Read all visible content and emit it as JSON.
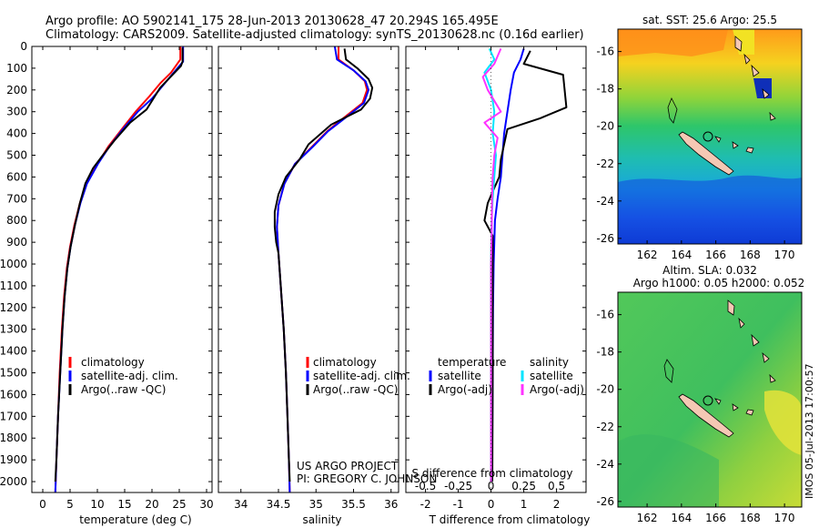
{
  "header": {
    "line1": "Argo profile: AO 5902141_175 28-Jun-2013 20130628_47 20.294S 165.495E",
    "line2": "Climatology: CARS2009. Satellite-adjusted climatology: synTS_20130628.nc (0.16d earlier)"
  },
  "colors": {
    "climatology": "#ff0000",
    "satellite": "#0000ff",
    "argo": "#000000",
    "cyan": "#00e5ff",
    "magenta": "#ff33ff"
  },
  "chart_data": [
    {
      "type": "line",
      "id": "temperature",
      "xlabel": "temperature (deg C)",
      "ylabel": "pressure",
      "xlim": [
        -2,
        31
      ],
      "ylim": [
        0,
        2050
      ],
      "xticks": [
        0,
        5,
        10,
        15,
        20,
        25,
        30
      ],
      "xtick_labels": [
        "0",
        "5",
        "10",
        "15",
        "20",
        "25",
        "30"
      ],
      "yticks": [
        0,
        100,
        200,
        300,
        400,
        500,
        600,
        700,
        800,
        900,
        1000,
        1100,
        1200,
        1300,
        1400,
        1500,
        1600,
        1700,
        1800,
        1900,
        2000
      ],
      "ytick_labels": [
        "0",
        "100",
        "200",
        "300",
        "400",
        "500",
        "600",
        "700",
        "800",
        "900",
        "1000",
        "1100",
        "1200",
        "1300",
        "1400",
        "1500",
        "1600",
        "1700",
        "1800",
        "1900",
        "2000"
      ],
      "legend": [
        "climatology",
        "satellite-adj. clim.",
        "Argo(..raw -QC)"
      ],
      "series": [
        {
          "name": "climatology",
          "color": "#ff0000",
          "points": [
            [
              25.2,
              0
            ],
            [
              25.2,
              60
            ],
            [
              23.5,
              120
            ],
            [
              21.5,
              170
            ],
            [
              19.5,
              230
            ],
            [
              17,
              300
            ],
            [
              14.5,
              380
            ],
            [
              12,
              460
            ],
            [
              10,
              540
            ],
            [
              8,
              630
            ],
            [
              6.8,
              720
            ],
            [
              5.8,
              820
            ],
            [
              5,
              920
            ],
            [
              4.4,
              1020
            ],
            [
              3.9,
              1150
            ],
            [
              3.5,
              1300
            ],
            [
              3.1,
              1500
            ],
            [
              2.8,
              1700
            ],
            [
              2.5,
              1900
            ],
            [
              2.3,
              2050
            ]
          ]
        },
        {
          "name": "satellite-adj. clim.",
          "color": "#0000ff",
          "points": [
            [
              25.7,
              0
            ],
            [
              25.7,
              70
            ],
            [
              24,
              120
            ],
            [
              22,
              180
            ],
            [
              20,
              240
            ],
            [
              17.4,
              300
            ],
            [
              14.7,
              380
            ],
            [
              12.2,
              460
            ],
            [
              10.1,
              540
            ],
            [
              8.1,
              630
            ],
            [
              6.9,
              720
            ],
            [
              5.9,
              820
            ],
            [
              5.1,
              920
            ],
            [
              4.5,
              1020
            ],
            [
              4,
              1150
            ],
            [
              3.6,
              1300
            ],
            [
              3.2,
              1500
            ],
            [
              2.8,
              1700
            ],
            [
              2.5,
              1900
            ],
            [
              2.3,
              2050
            ]
          ]
        },
        {
          "name": "Argo(..raw -QC)",
          "color": "#000000",
          "points": [
            [
              25.6,
              5
            ],
            [
              25.6,
              70
            ],
            [
              25.3,
              90
            ],
            [
              23,
              150
            ],
            [
              21.5,
              190
            ],
            [
              21,
              210
            ],
            [
              20.5,
              230
            ],
            [
              19,
              290
            ],
            [
              16,
              350
            ],
            [
              13.2,
              430
            ],
            [
              11,
              500
            ],
            [
              9.2,
              560
            ],
            [
              7.8,
              630
            ],
            [
              6.8,
              720
            ],
            [
              5.9,
              820
            ],
            [
              5.1,
              920
            ],
            [
              4.5,
              1020
            ],
            [
              4,
              1150
            ],
            [
              3.6,
              1300
            ],
            [
              3.2,
              1500
            ],
            [
              2.8,
              1700
            ],
            [
              2.5,
              1900
            ],
            [
              2.3,
              2000
            ]
          ]
        }
      ]
    },
    {
      "type": "line",
      "id": "salinity",
      "xlabel": "salinity",
      "xlim": [
        33.7,
        36.1
      ],
      "ylim": [
        0,
        2050
      ],
      "xticks": [
        34,
        34.5,
        35,
        35.5,
        36
      ],
      "xtick_labels": [
        "34",
        "34.5",
        "35",
        "35.5",
        "36"
      ],
      "legend": [
        "climatology",
        "satellite-adj. clim.",
        "Argo(..raw -QC)"
      ],
      "series": [
        {
          "name": "climatology",
          "color": "#ff0000",
          "points": [
            [
              35.3,
              0
            ],
            [
              35.3,
              60
            ],
            [
              35.5,
              110
            ],
            [
              35.65,
              160
            ],
            [
              35.68,
              200
            ],
            [
              35.62,
              260
            ],
            [
              35.4,
              320
            ],
            [
              35.15,
              390
            ],
            [
              34.95,
              460
            ],
            [
              34.72,
              540
            ],
            [
              34.58,
              630
            ],
            [
              34.5,
              730
            ],
            [
              34.48,
              830
            ],
            [
              34.5,
              950
            ],
            [
              34.53,
              1100
            ],
            [
              34.57,
              1300
            ],
            [
              34.6,
              1500
            ],
            [
              34.62,
              1700
            ],
            [
              34.64,
              1900
            ],
            [
              34.65,
              2050
            ]
          ]
        },
        {
          "name": "satellite-adj. clim.",
          "color": "#0000ff",
          "points": [
            [
              35.25,
              0
            ],
            [
              35.28,
              60
            ],
            [
              35.5,
              110
            ],
            [
              35.66,
              160
            ],
            [
              35.7,
              200
            ],
            [
              35.64,
              260
            ],
            [
              35.42,
              320
            ],
            [
              35.16,
              390
            ],
            [
              34.96,
              460
            ],
            [
              34.72,
              540
            ],
            [
              34.58,
              630
            ],
            [
              34.5,
              730
            ],
            [
              34.48,
              830
            ],
            [
              34.5,
              950
            ],
            [
              34.53,
              1100
            ],
            [
              34.57,
              1300
            ],
            [
              34.6,
              1500
            ],
            [
              34.62,
              1700
            ],
            [
              34.64,
              1900
            ],
            [
              34.65,
              2050
            ]
          ]
        },
        {
          "name": "Argo(..raw -QC)",
          "color": "#000000",
          "points": [
            [
              35.38,
              10
            ],
            [
              35.4,
              60
            ],
            [
              35.55,
              100
            ],
            [
              35.7,
              150
            ],
            [
              35.75,
              190
            ],
            [
              35.72,
              240
            ],
            [
              35.6,
              290
            ],
            [
              35.2,
              360
            ],
            [
              34.9,
              450
            ],
            [
              34.78,
              520
            ],
            [
              34.6,
              600
            ],
            [
              34.5,
              680
            ],
            [
              34.45,
              760
            ],
            [
              34.45,
              830
            ],
            [
              34.47,
              900
            ],
            [
              34.5,
              950
            ],
            [
              34.53,
              1100
            ],
            [
              34.57,
              1300
            ],
            [
              34.6,
              1500
            ],
            [
              34.62,
              1700
            ],
            [
              34.64,
              1900
            ],
            [
              34.65,
              2000
            ]
          ]
        }
      ]
    },
    {
      "type": "line",
      "id": "difference",
      "xlabel": "T difference from climatology",
      "xlabel2": "S difference from climatology",
      "xlim": [
        -2.6,
        2.9
      ],
      "ylim": [
        0,
        2050
      ],
      "xticks": [
        -2,
        -1,
        0,
        1,
        2
      ],
      "xtick_labels": [
        "-2",
        "-1",
        "0",
        "1",
        "2"
      ],
      "xticks2": [
        -0.5,
        -0.25,
        0,
        0.25,
        0.5
      ],
      "xtick_labels2": [
        "-0.5",
        "-0.25",
        "0",
        "0.25",
        "0.5"
      ],
      "legend_headers": [
        "temperature",
        "salinity"
      ],
      "legend": [
        "satellite",
        "Argo(-adj)",
        "satellite",
        "Argo(-adj)"
      ],
      "series": [
        {
          "name": "T satellite",
          "color": "#0000ff",
          "points": [
            [
              1.0,
              10
            ],
            [
              0.9,
              60
            ],
            [
              0.7,
              120
            ],
            [
              0.6,
              200
            ],
            [
              0.5,
              300
            ],
            [
              0.4,
              400
            ],
            [
              0.35,
              500
            ],
            [
              0.3,
              600
            ],
            [
              0.2,
              700
            ],
            [
              0.12,
              800
            ],
            [
              0.1,
              900
            ],
            [
              0.08,
              1000
            ],
            [
              0.06,
              1200
            ],
            [
              0.05,
              1500
            ],
            [
              0.04,
              1800
            ],
            [
              0.03,
              2000
            ]
          ]
        },
        {
          "name": "T Argo(-adj)",
          "color": "#000000",
          "points": [
            [
              1.2,
              20
            ],
            [
              1.0,
              80
            ],
            [
              2.2,
              130
            ],
            [
              2.3,
              280
            ],
            [
              1.5,
              330
            ],
            [
              0.5,
              380
            ],
            [
              0.4,
              450
            ],
            [
              0.3,
              520
            ],
            [
              0.25,
              600
            ],
            [
              0.1,
              650
            ],
            [
              -0.1,
              720
            ],
            [
              -0.2,
              800
            ],
            [
              0.05,
              870
            ],
            [
              0.05,
              1000
            ],
            [
              0.05,
              1500
            ],
            [
              0.04,
              2000
            ]
          ]
        },
        {
          "name": "S satellite",
          "color": "#00e5ff",
          "points": [
            [
              -0.05,
              10
            ],
            [
              0.1,
              60
            ],
            [
              -0.2,
              120
            ],
            [
              0.0,
              200
            ],
            [
              0.1,
              300
            ],
            [
              0.05,
              400
            ],
            [
              0.15,
              500
            ],
            [
              0.1,
              600
            ],
            [
              0.05,
              700
            ],
            [
              0.02,
              800
            ],
            [
              0.0,
              1000
            ],
            [
              0.0,
              1500
            ],
            [
              0.0,
              2000
            ]
          ]
        },
        {
          "name": "S Argo(-adj)",
          "color": "#ff33ff",
          "points": [
            [
              0.3,
              10
            ],
            [
              0.1,
              80
            ],
            [
              -0.25,
              140
            ],
            [
              -0.1,
              200
            ],
            [
              0.3,
              300
            ],
            [
              -0.2,
              350
            ],
            [
              0.2,
              420
            ],
            [
              0.1,
              500
            ],
            [
              0.05,
              600
            ],
            [
              0.03,
              700
            ],
            [
              0.02,
              850
            ],
            [
              0.0,
              1000
            ],
            [
              0.0,
              1500
            ],
            [
              0.0,
              2000
            ]
          ]
        }
      ]
    },
    {
      "type": "heatmap",
      "id": "sst_map",
      "title": "sat. SST: 25.6 Argo: 25.5",
      "xlim": [
        160.3,
        171.0
      ],
      "ylim": [
        -26.3,
        -14.8
      ],
      "xticks": [
        162,
        164,
        166,
        168,
        170
      ],
      "xtick_labels": [
        "162",
        "164",
        "166",
        "168",
        "170"
      ],
      "yticks": [
        -16,
        -18,
        -20,
        -22,
        -24,
        -26
      ],
      "ytick_labels": [
        "-16",
        "-18",
        "-20",
        "-22",
        "-24",
        "-26"
      ],
      "profile_location": [
        165.495,
        -20.294
      ]
    },
    {
      "type": "heatmap",
      "id": "sla_map",
      "title": "Altim. SLA: 0.032",
      "subtitle": "Argo h1000: 0.05 h2000: 0.052",
      "xlim": [
        160.3,
        171.0
      ],
      "ylim": [
        -26.3,
        -14.8
      ],
      "xticks": [
        162,
        164,
        166,
        168,
        170
      ],
      "xtick_labels": [
        "162",
        "164",
        "166",
        "168",
        "170"
      ],
      "yticks": [
        -16,
        -18,
        -20,
        -22,
        -24,
        -26
      ],
      "ytick_labels": [
        "-16",
        "-18",
        "-20",
        "-22",
        "-24",
        "-26"
      ],
      "profile_location": [
        165.495,
        -20.294
      ]
    }
  ],
  "credits": {
    "line1": "US ARGO PROJECT",
    "line2": "PI: GREGORY C. JOHNSON"
  },
  "side_stamp": "IMOS 05-Jul-2013 17:00:57"
}
